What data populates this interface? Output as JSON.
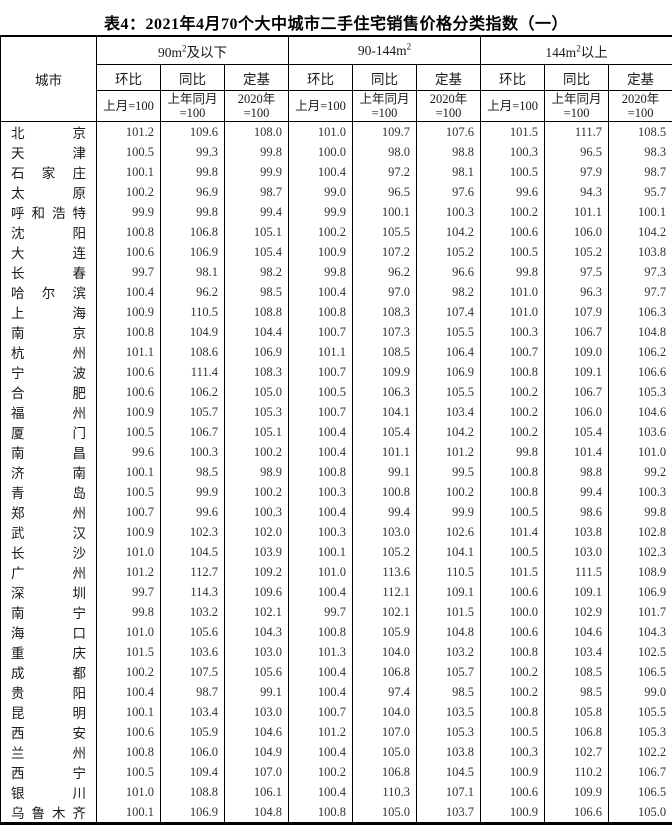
{
  "title": "表4：2021年4月70个大中城市二手住宅销售价格分类指数（一）",
  "colors": {
    "border": "#000000",
    "title_text": "#000000",
    "header_text": "#1a1a1a",
    "number_text": "#333333",
    "background": "#ffffff"
  },
  "table": {
    "city_header": "城市",
    "groups": [
      {
        "pre": "90m",
        "sup": "2",
        "post": "及以下"
      },
      {
        "pre": "90-144m",
        "sup": "2",
        "post": ""
      },
      {
        "pre": "144m",
        "sup": "2",
        "post": "以上"
      }
    ],
    "measures": [
      "环比",
      "同比",
      "定基"
    ],
    "bases": [
      {
        "line1": "上月=100",
        "line2": ""
      },
      {
        "line1": "上年同月",
        "line2": "=100"
      },
      {
        "line1": "2020年",
        "line2": "=100"
      }
    ],
    "rows": [
      {
        "city": "北京",
        "values": [
          "101.2",
          "109.6",
          "108.0",
          "101.0",
          "109.7",
          "107.6",
          "101.5",
          "111.7",
          "108.5"
        ]
      },
      {
        "city": "天津",
        "values": [
          "100.5",
          "99.3",
          "99.8",
          "100.0",
          "98.0",
          "98.8",
          "100.3",
          "96.5",
          "98.3"
        ]
      },
      {
        "city": "石家庄",
        "values": [
          "100.1",
          "99.8",
          "99.9",
          "100.4",
          "97.2",
          "98.1",
          "100.5",
          "97.9",
          "98.7"
        ]
      },
      {
        "city": "太原",
        "values": [
          "100.2",
          "96.9",
          "98.7",
          "99.0",
          "96.5",
          "97.6",
          "99.6",
          "94.3",
          "95.7"
        ]
      },
      {
        "city": "呼和浩特",
        "values": [
          "99.9",
          "99.8",
          "99.4",
          "99.9",
          "100.1",
          "100.3",
          "100.2",
          "101.1",
          "100.1"
        ]
      },
      {
        "city": "沈阳",
        "values": [
          "100.8",
          "106.8",
          "105.1",
          "100.2",
          "105.5",
          "104.2",
          "100.6",
          "106.0",
          "104.2"
        ]
      },
      {
        "city": "大连",
        "values": [
          "100.6",
          "106.9",
          "105.4",
          "100.9",
          "107.2",
          "105.2",
          "100.5",
          "105.2",
          "103.8"
        ]
      },
      {
        "city": "长春",
        "values": [
          "99.7",
          "98.1",
          "98.2",
          "99.8",
          "96.2",
          "96.6",
          "99.8",
          "97.5",
          "97.3"
        ]
      },
      {
        "city": "哈尔滨",
        "values": [
          "100.4",
          "96.2",
          "98.5",
          "100.4",
          "97.0",
          "98.2",
          "101.0",
          "96.3",
          "97.7"
        ]
      },
      {
        "city": "上海",
        "values": [
          "100.9",
          "110.5",
          "108.8",
          "100.8",
          "108.3",
          "107.4",
          "101.0",
          "107.9",
          "106.3"
        ]
      },
      {
        "city": "南京",
        "values": [
          "100.8",
          "104.9",
          "104.4",
          "100.7",
          "107.3",
          "105.5",
          "100.3",
          "106.7",
          "104.8"
        ]
      },
      {
        "city": "杭州",
        "values": [
          "101.1",
          "108.6",
          "106.9",
          "101.1",
          "108.5",
          "106.4",
          "100.7",
          "109.0",
          "106.2"
        ]
      },
      {
        "city": "宁波",
        "values": [
          "100.6",
          "111.4",
          "108.3",
          "100.7",
          "109.9",
          "106.9",
          "100.8",
          "109.1",
          "106.6"
        ]
      },
      {
        "city": "合肥",
        "values": [
          "100.6",
          "106.2",
          "105.0",
          "100.5",
          "106.3",
          "105.5",
          "100.2",
          "106.7",
          "105.3"
        ]
      },
      {
        "city": "福州",
        "values": [
          "100.9",
          "105.7",
          "105.3",
          "100.7",
          "104.1",
          "103.4",
          "100.2",
          "106.0",
          "104.6"
        ]
      },
      {
        "city": "厦门",
        "values": [
          "100.5",
          "106.7",
          "105.1",
          "100.4",
          "105.4",
          "104.2",
          "100.2",
          "105.4",
          "103.6"
        ]
      },
      {
        "city": "南昌",
        "values": [
          "99.6",
          "100.3",
          "100.2",
          "100.4",
          "101.1",
          "101.2",
          "99.8",
          "101.4",
          "101.0"
        ]
      },
      {
        "city": "济南",
        "values": [
          "100.1",
          "98.5",
          "98.9",
          "100.8",
          "99.1",
          "99.5",
          "100.8",
          "98.8",
          "99.2"
        ]
      },
      {
        "city": "青岛",
        "values": [
          "100.5",
          "99.9",
          "100.2",
          "100.3",
          "100.8",
          "100.2",
          "100.8",
          "99.4",
          "100.3"
        ]
      },
      {
        "city": "郑州",
        "values": [
          "100.7",
          "99.6",
          "100.3",
          "100.4",
          "99.4",
          "99.9",
          "100.5",
          "98.6",
          "99.8"
        ]
      },
      {
        "city": "武汉",
        "values": [
          "100.9",
          "102.3",
          "102.0",
          "100.3",
          "103.0",
          "102.6",
          "101.4",
          "103.8",
          "102.8"
        ]
      },
      {
        "city": "长沙",
        "values": [
          "101.0",
          "104.5",
          "103.9",
          "100.1",
          "105.2",
          "104.1",
          "100.5",
          "103.0",
          "102.3"
        ]
      },
      {
        "city": "广州",
        "values": [
          "101.2",
          "112.7",
          "109.2",
          "101.0",
          "113.6",
          "110.5",
          "101.5",
          "111.5",
          "108.9"
        ]
      },
      {
        "city": "深圳",
        "values": [
          "99.7",
          "114.3",
          "109.6",
          "100.4",
          "112.1",
          "109.1",
          "100.6",
          "109.1",
          "106.9"
        ]
      },
      {
        "city": "南宁",
        "values": [
          "99.8",
          "103.2",
          "102.1",
          "99.7",
          "102.1",
          "101.5",
          "100.0",
          "102.9",
          "101.7"
        ]
      },
      {
        "city": "海口",
        "values": [
          "101.0",
          "105.6",
          "104.3",
          "100.8",
          "105.9",
          "104.8",
          "100.6",
          "104.6",
          "104.3"
        ]
      },
      {
        "city": "重庆",
        "values": [
          "101.5",
          "103.6",
          "103.0",
          "101.3",
          "104.0",
          "103.2",
          "100.8",
          "103.4",
          "102.5"
        ]
      },
      {
        "city": "成都",
        "values": [
          "100.2",
          "107.5",
          "105.6",
          "100.4",
          "106.8",
          "105.7",
          "100.2",
          "108.5",
          "106.5"
        ]
      },
      {
        "city": "贵阳",
        "values": [
          "100.4",
          "98.7",
          "99.1",
          "100.4",
          "97.4",
          "98.5",
          "100.2",
          "98.5",
          "99.0"
        ]
      },
      {
        "city": "昆明",
        "values": [
          "100.1",
          "103.4",
          "103.0",
          "100.7",
          "104.0",
          "103.5",
          "100.8",
          "105.8",
          "105.5"
        ]
      },
      {
        "city": "西安",
        "values": [
          "100.6",
          "105.9",
          "104.6",
          "101.2",
          "107.0",
          "105.3",
          "100.5",
          "106.8",
          "105.3"
        ]
      },
      {
        "city": "兰州",
        "values": [
          "100.8",
          "106.0",
          "104.9",
          "100.4",
          "105.0",
          "103.8",
          "100.3",
          "102.7",
          "102.2"
        ]
      },
      {
        "city": "西宁",
        "values": [
          "100.5",
          "109.4",
          "107.0",
          "100.2",
          "106.8",
          "104.5",
          "100.9",
          "110.2",
          "106.7"
        ]
      },
      {
        "city": "银川",
        "values": [
          "101.0",
          "108.8",
          "106.1",
          "100.4",
          "110.3",
          "107.1",
          "100.6",
          "109.9",
          "106.5"
        ]
      },
      {
        "city": "乌鲁木齐",
        "values": [
          "100.1",
          "106.9",
          "104.8",
          "100.8",
          "105.0",
          "103.7",
          "100.9",
          "106.6",
          "105.0"
        ]
      }
    ]
  }
}
